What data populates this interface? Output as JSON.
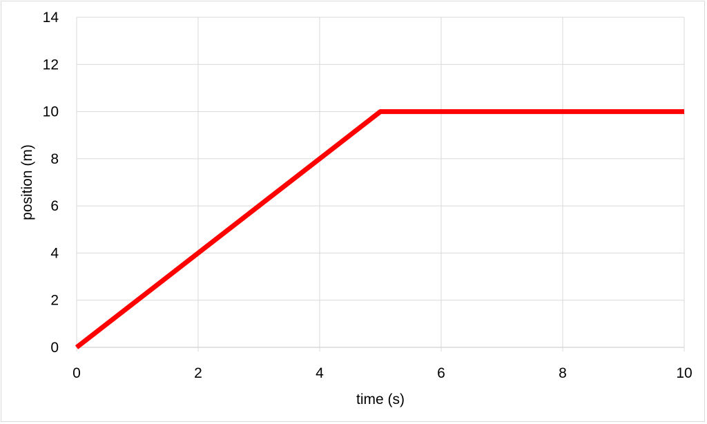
{
  "chart_data": {
    "type": "line",
    "title": "",
    "xlabel": "time (s)",
    "ylabel": "position (m)",
    "xlim": [
      0,
      10
    ],
    "ylim": [
      0,
      14
    ],
    "xticks": [
      0,
      2,
      4,
      6,
      8,
      10
    ],
    "yticks": [
      0,
      2,
      4,
      6,
      8,
      10,
      12,
      14
    ],
    "grid": true,
    "legend": "none",
    "series": [
      {
        "color": "#ff0000",
        "x": [
          0,
          5,
          10
        ],
        "y": [
          0,
          10,
          10
        ]
      }
    ]
  }
}
